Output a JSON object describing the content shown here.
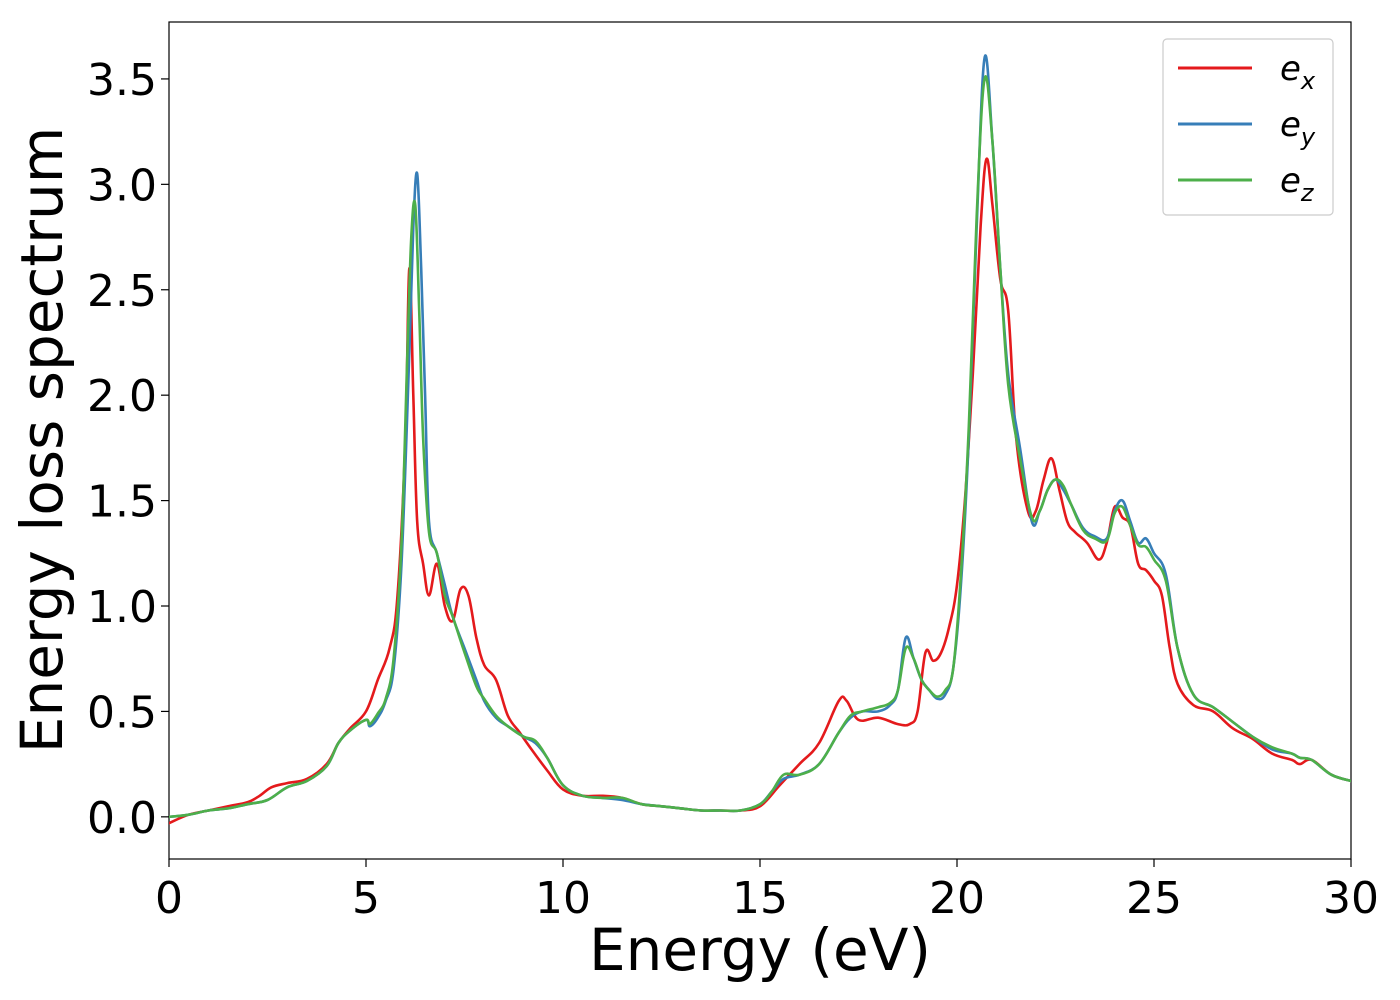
{
  "chart_data": {
    "type": "line",
    "title": "",
    "xlabel": "Energy (eV)",
    "ylabel": "Energy loss spectrum",
    "xlim": [
      0,
      30
    ],
    "ylim": [
      -0.2,
      3.77
    ],
    "xticks": [
      0,
      5,
      10,
      15,
      20,
      25,
      30
    ],
    "xtick_labels": [
      "0",
      "5",
      "10",
      "15",
      "20",
      "25",
      "30"
    ],
    "yticks": [
      0.0,
      0.5,
      1.0,
      1.5,
      2.0,
      2.5,
      3.0,
      3.5
    ],
    "ytick_labels": [
      "0.0",
      "0.5",
      "1.0",
      "1.5",
      "2.0",
      "2.5",
      "3.0",
      "3.5"
    ],
    "grid": false,
    "legend_position": "top-right",
    "series": [
      {
        "name": "e_x",
        "label_base": "e",
        "label_sub": "x",
        "color": "#e41a1c",
        "x": [
          0,
          0.5,
          1,
          1.5,
          2,
          2.3,
          2.6,
          3,
          3.5,
          4,
          4.3,
          4.6,
          5,
          5.3,
          5.6,
          5.8,
          6,
          6.1,
          6.2,
          6.3,
          6.45,
          6.6,
          6.8,
          7,
          7.2,
          7.4,
          7.6,
          7.8,
          8,
          8.3,
          8.6,
          8.9,
          9.2,
          9.6,
          10,
          10.5,
          11,
          11.5,
          12,
          12.5,
          13,
          13.5,
          14,
          14.5,
          15,
          15.5,
          16,
          16.5,
          17,
          17.2,
          17.5,
          18,
          18.5,
          18.8,
          19,
          19.2,
          19.4,
          19.6,
          19.8,
          20,
          20.2,
          20.4,
          20.6,
          20.75,
          20.9,
          21.1,
          21.3,
          21.5,
          21.8,
          22,
          22.2,
          22.4,
          22.6,
          22.8,
          23,
          23.3,
          23.6,
          23.8,
          24,
          24.2,
          24.4,
          24.6,
          24.8,
          25,
          25.2,
          25.4,
          25.6,
          26,
          26.5,
          27,
          27.5,
          28,
          28.5,
          28.7,
          29,
          29.5,
          30
        ],
        "y": [
          -0.03,
          0.01,
          0.03,
          0.05,
          0.07,
          0.1,
          0.14,
          0.16,
          0.18,
          0.25,
          0.35,
          0.42,
          0.5,
          0.65,
          0.8,
          1.05,
          1.8,
          2.6,
          2.0,
          1.4,
          1.2,
          1.05,
          1.2,
          1.0,
          0.93,
          1.08,
          1.05,
          0.85,
          0.72,
          0.65,
          0.48,
          0.4,
          0.32,
          0.22,
          0.13,
          0.1,
          0.1,
          0.09,
          0.06,
          0.05,
          0.04,
          0.03,
          0.03,
          0.03,
          0.05,
          0.15,
          0.25,
          0.35,
          0.55,
          0.55,
          0.46,
          0.47,
          0.44,
          0.44,
          0.5,
          0.78,
          0.74,
          0.78,
          0.9,
          1.1,
          1.5,
          2.1,
          2.8,
          3.12,
          2.9,
          2.55,
          2.4,
          1.8,
          1.45,
          1.45,
          1.6,
          1.7,
          1.55,
          1.4,
          1.35,
          1.3,
          1.22,
          1.3,
          1.47,
          1.42,
          1.38,
          1.2,
          1.17,
          1.12,
          1.05,
          0.8,
          0.63,
          0.53,
          0.5,
          0.42,
          0.37,
          0.3,
          0.27,
          0.25,
          0.27,
          0.2,
          0.17
        ]
      },
      {
        "name": "e_y",
        "label_base": "e",
        "label_sub": "y",
        "color": "#377eb8",
        "x": [
          0,
          0.5,
          1,
          1.5,
          2,
          2.5,
          3,
          3.5,
          4,
          4.3,
          4.6,
          5,
          5.1,
          5.3,
          5.5,
          5.7,
          5.9,
          6.1,
          6.2,
          6.3,
          6.4,
          6.5,
          6.6,
          6.8,
          7,
          7.2,
          7.5,
          7.8,
          8,
          8.3,
          8.6,
          9,
          9.3,
          9.6,
          10,
          10.5,
          11,
          11.5,
          12,
          12.5,
          13,
          13.5,
          14,
          14.5,
          15,
          15.3,
          15.6,
          16,
          16.5,
          17,
          17.3,
          17.6,
          18,
          18.3,
          18.5,
          18.7,
          18.9,
          19.1,
          19.3,
          19.5,
          19.7,
          19.9,
          20.1,
          20.3,
          20.5,
          20.7,
          20.9,
          21.1,
          21.3,
          21.6,
          21.9,
          22.1,
          22.3,
          22.5,
          22.7,
          22.9,
          23.2,
          23.5,
          23.8,
          24,
          24.2,
          24.4,
          24.6,
          24.8,
          25,
          25.3,
          25.6,
          26,
          26.5,
          27,
          27.5,
          28,
          28.5,
          28.7,
          29,
          29.5,
          30
        ],
        "y": [
          0.0,
          0.01,
          0.03,
          0.04,
          0.06,
          0.08,
          0.14,
          0.17,
          0.24,
          0.35,
          0.41,
          0.46,
          0.43,
          0.47,
          0.55,
          0.7,
          1.2,
          2.2,
          2.8,
          3.05,
          2.6,
          2.0,
          1.4,
          1.25,
          1.1,
          0.95,
          0.8,
          0.65,
          0.55,
          0.47,
          0.43,
          0.38,
          0.35,
          0.28,
          0.15,
          0.1,
          0.09,
          0.08,
          0.06,
          0.05,
          0.04,
          0.03,
          0.03,
          0.03,
          0.06,
          0.12,
          0.18,
          0.2,
          0.25,
          0.4,
          0.47,
          0.5,
          0.5,
          0.53,
          0.6,
          0.85,
          0.75,
          0.65,
          0.6,
          0.56,
          0.58,
          0.7,
          1.1,
          1.8,
          2.8,
          3.6,
          3.2,
          2.6,
          2.1,
          1.75,
          1.4,
          1.45,
          1.55,
          1.6,
          1.55,
          1.48,
          1.37,
          1.33,
          1.32,
          1.45,
          1.5,
          1.4,
          1.3,
          1.32,
          1.25,
          1.15,
          0.8,
          0.58,
          0.52,
          0.45,
          0.38,
          0.32,
          0.3,
          0.28,
          0.27,
          0.2,
          0.17
        ]
      },
      {
        "name": "e_z",
        "label_base": "e",
        "label_sub": "z",
        "color": "#4daf4a",
        "x": [
          0,
          0.5,
          1,
          1.5,
          2,
          2.5,
          3,
          3.5,
          4,
          4.3,
          4.6,
          5,
          5.1,
          5.3,
          5.5,
          5.7,
          5.9,
          6.05,
          6.15,
          6.25,
          6.35,
          6.45,
          6.6,
          6.8,
          7,
          7.2,
          7.5,
          7.8,
          8,
          8.3,
          8.6,
          9,
          9.3,
          9.6,
          10,
          10.5,
          11,
          11.5,
          12,
          12.5,
          13,
          13.5,
          14,
          14.5,
          15,
          15.3,
          15.6,
          16,
          16.5,
          17,
          17.3,
          17.6,
          18,
          18.3,
          18.5,
          18.7,
          18.9,
          19.1,
          19.3,
          19.5,
          19.7,
          19.9,
          20.1,
          20.3,
          20.5,
          20.7,
          20.9,
          21.1,
          21.3,
          21.6,
          21.9,
          22.1,
          22.3,
          22.5,
          22.7,
          22.9,
          23.2,
          23.5,
          23.8,
          24,
          24.2,
          24.4,
          24.6,
          24.8,
          25,
          25.3,
          25.6,
          26,
          26.5,
          27,
          27.5,
          28,
          28.5,
          28.7,
          29,
          29.5,
          30
        ],
        "y": [
          0.0,
          0.01,
          0.03,
          0.04,
          0.06,
          0.08,
          0.14,
          0.17,
          0.24,
          0.35,
          0.41,
          0.46,
          0.44,
          0.49,
          0.56,
          0.75,
          1.3,
          2.2,
          2.75,
          2.9,
          2.4,
          1.8,
          1.35,
          1.25,
          1.05,
          0.95,
          0.78,
          0.62,
          0.56,
          0.48,
          0.43,
          0.38,
          0.36,
          0.28,
          0.15,
          0.1,
          0.09,
          0.09,
          0.06,
          0.05,
          0.04,
          0.03,
          0.03,
          0.03,
          0.06,
          0.12,
          0.2,
          0.2,
          0.25,
          0.4,
          0.48,
          0.5,
          0.52,
          0.54,
          0.6,
          0.8,
          0.75,
          0.65,
          0.6,
          0.57,
          0.6,
          0.7,
          1.15,
          1.85,
          2.85,
          3.5,
          3.2,
          2.6,
          2.05,
          1.7,
          1.42,
          1.45,
          1.55,
          1.6,
          1.57,
          1.48,
          1.36,
          1.32,
          1.31,
          1.44,
          1.47,
          1.38,
          1.29,
          1.28,
          1.22,
          1.12,
          0.8,
          0.58,
          0.52,
          0.45,
          0.38,
          0.33,
          0.3,
          0.28,
          0.27,
          0.2,
          0.17
        ]
      }
    ]
  }
}
